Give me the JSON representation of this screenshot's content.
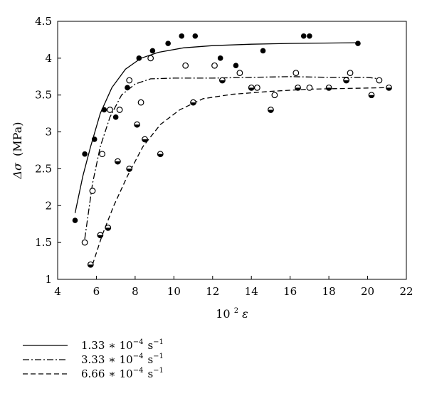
{
  "chart_data": {
    "type": "scatter",
    "xlabel": {
      "base": "10",
      "sup": "2",
      "var": "ε"
    },
    "ylabel": {
      "symbol": "Δσ",
      "unit": "(MPa)"
    },
    "xlim": [
      4,
      22
    ],
    "ylim": [
      1,
      4.5
    ],
    "x_ticks": [
      4,
      6,
      8,
      10,
      12,
      14,
      16,
      18,
      20,
      22
    ],
    "y_ticks": [
      1,
      1.5,
      2,
      2.5,
      3,
      3.5,
      4,
      4.5
    ],
    "x_tick_labels": [
      "4",
      "6",
      "8",
      "10",
      "12",
      "14",
      "16",
      "18",
      "20",
      "22"
    ],
    "y_tick_labels": [
      "1",
      "1.5",
      "2",
      "2.5",
      "3",
      "3.5",
      "4",
      "4.5"
    ],
    "grid": false,
    "legend_position": "below",
    "series": [
      {
        "name": "1.33 * 10^-4 s^-1",
        "legend": {
          "coef": "1.33",
          "op": "∗",
          "base": "10",
          "exp": "−4",
          "unit": "s",
          "unit_exp": "−1"
        },
        "marker": "filled",
        "line_style": "solid",
        "points": [
          [
            4.9,
            1.8
          ],
          [
            5.4,
            2.7
          ],
          [
            5.9,
            2.9
          ],
          [
            6.4,
            3.3
          ],
          [
            7.0,
            3.2
          ],
          [
            7.6,
            3.6
          ],
          [
            8.2,
            4.0
          ],
          [
            8.9,
            4.1
          ],
          [
            9.7,
            4.2
          ],
          [
            10.4,
            4.3
          ],
          [
            11.1,
            4.3
          ],
          [
            12.4,
            4.0
          ],
          [
            13.2,
            3.9
          ],
          [
            14.6,
            4.1
          ],
          [
            16.7,
            4.3
          ],
          [
            17.0,
            4.3
          ],
          [
            19.5,
            4.2
          ]
        ],
        "fit": [
          [
            4.9,
            1.9
          ],
          [
            5.3,
            2.4
          ],
          [
            5.7,
            2.8
          ],
          [
            6.2,
            3.25
          ],
          [
            6.8,
            3.6
          ],
          [
            7.5,
            3.85
          ],
          [
            8.3,
            4.0
          ],
          [
            9.2,
            4.08
          ],
          [
            10.5,
            4.14
          ],
          [
            12.0,
            4.17
          ],
          [
            14.0,
            4.19
          ],
          [
            16.0,
            4.2
          ],
          [
            19.5,
            4.21
          ]
        ]
      },
      {
        "name": "3.33 * 10^-4 s^-1",
        "legend": {
          "coef": "3.33",
          "op": "∗",
          "base": "10",
          "exp": "−4",
          "unit": "s",
          "unit_exp": "−1"
        },
        "marker": "open",
        "line_style": "dash-dot",
        "points": [
          [
            5.4,
            1.5
          ],
          [
            5.8,
            2.2
          ],
          [
            6.3,
            2.7
          ],
          [
            6.7,
            3.3
          ],
          [
            7.2,
            3.3
          ],
          [
            7.7,
            3.7
          ],
          [
            8.3,
            3.4
          ],
          [
            8.8,
            4.0
          ],
          [
            10.6,
            3.9
          ],
          [
            12.1,
            3.9
          ],
          [
            13.4,
            3.8
          ],
          [
            14.3,
            3.6
          ],
          [
            15.2,
            3.5
          ],
          [
            16.3,
            3.8
          ],
          [
            17.0,
            3.6
          ],
          [
            19.1,
            3.8
          ],
          [
            20.6,
            3.7
          ]
        ],
        "fit": [
          [
            5.4,
            1.55
          ],
          [
            5.8,
            2.3
          ],
          [
            6.2,
            2.8
          ],
          [
            6.7,
            3.2
          ],
          [
            7.3,
            3.5
          ],
          [
            8.0,
            3.65
          ],
          [
            8.8,
            3.72
          ],
          [
            10.0,
            3.73
          ],
          [
            12.0,
            3.73
          ],
          [
            14.0,
            3.74
          ],
          [
            16.0,
            3.75
          ],
          [
            18.0,
            3.74
          ],
          [
            20.0,
            3.74
          ],
          [
            20.6,
            3.72
          ]
        ]
      },
      {
        "name": "6.66 * 10^-4 s^-1",
        "legend": {
          "coef": "6.66",
          "op": "∗",
          "base": "10",
          "exp": "−4",
          "unit": "s",
          "unit_exp": "−1"
        },
        "marker": "half",
        "line_style": "dashed",
        "points": [
          [
            5.7,
            1.2
          ],
          [
            6.2,
            1.6
          ],
          [
            6.6,
            1.7
          ],
          [
            7.1,
            2.6
          ],
          [
            7.7,
            2.5
          ],
          [
            8.1,
            3.1
          ],
          [
            8.5,
            2.9
          ],
          [
            9.3,
            2.7
          ],
          [
            11.0,
            3.4
          ],
          [
            12.5,
            3.7
          ],
          [
            14.0,
            3.6
          ],
          [
            15.0,
            3.3
          ],
          [
            16.4,
            3.6
          ],
          [
            18.0,
            3.6
          ],
          [
            18.9,
            3.7
          ],
          [
            20.2,
            3.5
          ],
          [
            21.1,
            3.6
          ]
        ],
        "fit": [
          [
            5.8,
            1.2
          ],
          [
            6.3,
            1.6
          ],
          [
            6.9,
            2.0
          ],
          [
            7.6,
            2.4
          ],
          [
            8.4,
            2.8
          ],
          [
            9.3,
            3.1
          ],
          [
            10.3,
            3.3
          ],
          [
            11.5,
            3.45
          ],
          [
            13.0,
            3.51
          ],
          [
            15.0,
            3.55
          ],
          [
            17.0,
            3.58
          ],
          [
            19.0,
            3.59
          ],
          [
            21.0,
            3.6
          ]
        ]
      }
    ]
  }
}
